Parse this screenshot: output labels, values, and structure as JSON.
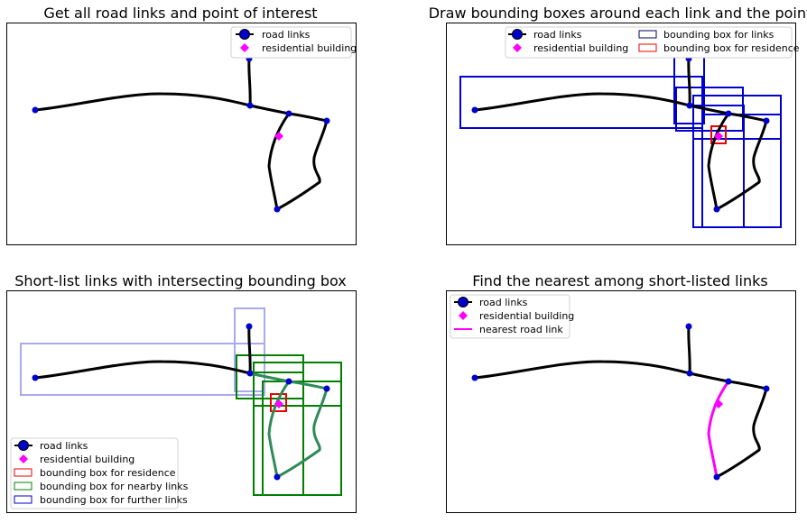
{
  "colors": {
    "road": "#000000",
    "node": "#0000cc",
    "residence": "#ff00ff",
    "bbox_link": "#0000cc",
    "bbox_residence": "#ee0000",
    "bbox_nearby": "#008000",
    "bbox_further": "#a9a9f2",
    "highlight_road": "#2e8b57",
    "nearest": "#ff00ff"
  },
  "panels": [
    {
      "title": "Get all road links and point of interest",
      "legend": {
        "road": "road links",
        "residence": "residential building"
      }
    },
    {
      "title": "Draw bounding boxes around each link and the point",
      "legend": {
        "road": "road links",
        "residence": "residential building",
        "bbox_links": "bounding box for links",
        "bbox_residence": "bounding box for residence"
      }
    },
    {
      "title": "Short-list links with intersecting bounding box",
      "legend": {
        "road": "road links",
        "residence": "residential building",
        "bbox_residence": "bounding box for residence",
        "bbox_nearby": "bounding box for nearby links",
        "bbox_further": "bounding box for further links"
      }
    },
    {
      "title": "Find the nearest among short-listed links",
      "legend": {
        "road": "road links",
        "residence": "residential building",
        "nearest": "nearest road link"
      }
    }
  ]
}
